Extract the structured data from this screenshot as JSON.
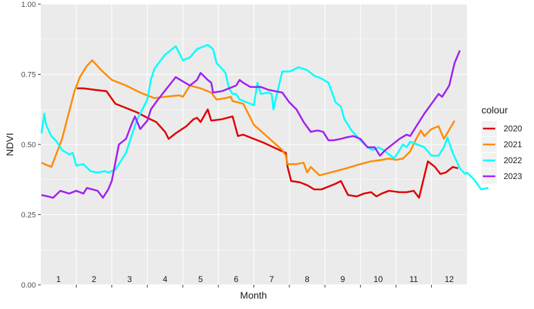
{
  "chart_data": {
    "type": "line",
    "xlabel": "Month",
    "ylabel": "NDVI",
    "xlim": [
      0,
      12
    ],
    "ylim": [
      0,
      1
    ],
    "x_ticks": [
      {
        "pos": 0.5,
        "label": "1"
      },
      {
        "pos": 1.5,
        "label": "2"
      },
      {
        "pos": 2.5,
        "label": "3"
      },
      {
        "pos": 3.5,
        "label": "4"
      },
      {
        "pos": 4.5,
        "label": "5"
      },
      {
        "pos": 5.5,
        "label": "6"
      },
      {
        "pos": 6.5,
        "label": "7"
      },
      {
        "pos": 7.5,
        "label": "8"
      },
      {
        "pos": 8.5,
        "label": "9"
      },
      {
        "pos": 9.5,
        "label": "10"
      },
      {
        "pos": 10.5,
        "label": "11"
      },
      {
        "pos": 11.5,
        "label": "12"
      }
    ],
    "y_ticks": [
      {
        "value": 0.0,
        "label": "0.00"
      },
      {
        "value": 0.25,
        "label": "0.25"
      },
      {
        "value": 0.5,
        "label": "0.50"
      },
      {
        "value": 0.75,
        "label": "0.75"
      },
      {
        "value": 1.0,
        "label": "1.00"
      }
    ],
    "grid": true,
    "legend": {
      "title": "colour",
      "position": "right"
    },
    "series": [
      {
        "name": "2020",
        "color": "#e00000",
        "points": [
          [
            1.02,
            0.7
          ],
          [
            1.2,
            0.7
          ],
          [
            1.5,
            0.695
          ],
          [
            1.85,
            0.69
          ],
          [
            2.1,
            0.645
          ],
          [
            2.4,
            0.63
          ],
          [
            2.7,
            0.615
          ],
          [
            3.0,
            0.595
          ],
          [
            3.25,
            0.58
          ],
          [
            3.5,
            0.545
          ],
          [
            3.6,
            0.52
          ],
          [
            3.8,
            0.54
          ],
          [
            4.1,
            0.565
          ],
          [
            4.3,
            0.59
          ],
          [
            4.4,
            0.595
          ],
          [
            4.5,
            0.58
          ],
          [
            4.7,
            0.625
          ],
          [
            4.8,
            0.585
          ],
          [
            5.1,
            0.59
          ],
          [
            5.4,
            0.6
          ],
          [
            5.55,
            0.53
          ],
          [
            5.7,
            0.535
          ],
          [
            6.0,
            0.52
          ],
          [
            6.3,
            0.505
          ],
          [
            6.55,
            0.49
          ],
          [
            6.9,
            0.47
          ],
          [
            6.95,
            0.42
          ],
          [
            7.05,
            0.37
          ],
          [
            7.3,
            0.365
          ],
          [
            7.5,
            0.355
          ],
          [
            7.7,
            0.34
          ],
          [
            7.9,
            0.34
          ],
          [
            8.1,
            0.35
          ],
          [
            8.3,
            0.36
          ],
          [
            8.45,
            0.37
          ],
          [
            8.55,
            0.345
          ],
          [
            8.65,
            0.32
          ],
          [
            8.9,
            0.315
          ],
          [
            9.1,
            0.325
          ],
          [
            9.3,
            0.33
          ],
          [
            9.45,
            0.315
          ],
          [
            9.6,
            0.325
          ],
          [
            9.8,
            0.335
          ],
          [
            10.1,
            0.33
          ],
          [
            10.3,
            0.33
          ],
          [
            10.5,
            0.335
          ],
          [
            10.65,
            0.31
          ],
          [
            10.9,
            0.44
          ],
          [
            11.1,
            0.42
          ],
          [
            11.25,
            0.395
          ],
          [
            11.4,
            0.4
          ],
          [
            11.6,
            0.42
          ],
          [
            11.75,
            0.415
          ]
        ]
      },
      {
        "name": "2021",
        "color": "#ff8c00",
        "points": [
          [
            0.02,
            0.435
          ],
          [
            0.3,
            0.42
          ],
          [
            0.6,
            0.52
          ],
          [
            0.95,
            0.69
          ],
          [
            1.1,
            0.74
          ],
          [
            1.3,
            0.78
          ],
          [
            1.45,
            0.8
          ],
          [
            1.7,
            0.765
          ],
          [
            2.0,
            0.73
          ],
          [
            2.4,
            0.71
          ],
          [
            2.8,
            0.685
          ],
          [
            3.2,
            0.665
          ],
          [
            3.5,
            0.67
          ],
          [
            3.9,
            0.675
          ],
          [
            4.0,
            0.67
          ],
          [
            4.2,
            0.71
          ],
          [
            4.5,
            0.7
          ],
          [
            4.8,
            0.685
          ],
          [
            4.95,
            0.66
          ],
          [
            5.2,
            0.665
          ],
          [
            5.35,
            0.67
          ],
          [
            5.4,
            0.655
          ],
          [
            5.7,
            0.645
          ],
          [
            6.0,
            0.57
          ],
          [
            6.4,
            0.525
          ],
          [
            6.8,
            0.48
          ],
          [
            6.9,
            0.46
          ],
          [
            6.95,
            0.43
          ],
          [
            7.2,
            0.43
          ],
          [
            7.4,
            0.435
          ],
          [
            7.5,
            0.4
          ],
          [
            7.6,
            0.42
          ],
          [
            7.85,
            0.39
          ],
          [
            8.0,
            0.395
          ],
          [
            8.3,
            0.405
          ],
          [
            8.6,
            0.415
          ],
          [
            9.0,
            0.43
          ],
          [
            9.3,
            0.44
          ],
          [
            9.6,
            0.445
          ],
          [
            9.8,
            0.45
          ],
          [
            10.0,
            0.445
          ],
          [
            10.2,
            0.45
          ],
          [
            10.4,
            0.475
          ],
          [
            10.55,
            0.515
          ],
          [
            10.7,
            0.55
          ],
          [
            10.8,
            0.53
          ],
          [
            11.0,
            0.555
          ],
          [
            11.2,
            0.565
          ],
          [
            11.35,
            0.52
          ],
          [
            11.65,
            0.585
          ]
        ]
      },
      {
        "name": "2022",
        "color": "#00ffff",
        "points": [
          [
            0.02,
            0.54
          ],
          [
            0.1,
            0.61
          ],
          [
            0.15,
            0.57
          ],
          [
            0.3,
            0.53
          ],
          [
            0.45,
            0.51
          ],
          [
            0.6,
            0.48
          ],
          [
            0.8,
            0.465
          ],
          [
            0.9,
            0.47
          ],
          [
            1.0,
            0.425
          ],
          [
            1.2,
            0.43
          ],
          [
            1.4,
            0.405
          ],
          [
            1.6,
            0.4
          ],
          [
            1.8,
            0.405
          ],
          [
            1.9,
            0.4
          ],
          [
            2.1,
            0.41
          ],
          [
            2.4,
            0.47
          ],
          [
            2.7,
            0.585
          ],
          [
            3.0,
            0.66
          ],
          [
            3.1,
            0.73
          ],
          [
            3.2,
            0.77
          ],
          [
            3.5,
            0.82
          ],
          [
            3.8,
            0.85
          ],
          [
            4.0,
            0.8
          ],
          [
            4.2,
            0.81
          ],
          [
            4.4,
            0.84
          ],
          [
            4.7,
            0.855
          ],
          [
            4.85,
            0.84
          ],
          [
            4.95,
            0.79
          ],
          [
            5.1,
            0.77
          ],
          [
            5.2,
            0.755
          ],
          [
            5.3,
            0.7
          ],
          [
            5.4,
            0.68
          ],
          [
            5.5,
            0.68
          ],
          [
            5.6,
            0.66
          ],
          [
            5.8,
            0.65
          ],
          [
            6.0,
            0.64
          ],
          [
            6.1,
            0.72
          ],
          [
            6.2,
            0.68
          ],
          [
            6.4,
            0.685
          ],
          [
            6.5,
            0.68
          ],
          [
            6.55,
            0.625
          ],
          [
            6.65,
            0.68
          ],
          [
            6.8,
            0.76
          ],
          [
            7.0,
            0.76
          ],
          [
            7.1,
            0.765
          ],
          [
            7.25,
            0.775
          ],
          [
            7.5,
            0.765
          ],
          [
            7.7,
            0.745
          ],
          [
            7.9,
            0.735
          ],
          [
            8.1,
            0.72
          ],
          [
            8.3,
            0.65
          ],
          [
            8.45,
            0.635
          ],
          [
            8.55,
            0.59
          ],
          [
            8.75,
            0.55
          ],
          [
            9.0,
            0.515
          ],
          [
            9.2,
            0.49
          ],
          [
            9.35,
            0.48
          ],
          [
            9.5,
            0.49
          ],
          [
            9.65,
            0.48
          ],
          [
            9.8,
            0.465
          ],
          [
            9.95,
            0.45
          ],
          [
            10.1,
            0.48
          ],
          [
            10.2,
            0.5
          ],
          [
            10.3,
            0.49
          ],
          [
            10.4,
            0.51
          ],
          [
            10.6,
            0.5
          ],
          [
            10.8,
            0.49
          ],
          [
            11.0,
            0.46
          ],
          [
            11.2,
            0.46
          ],
          [
            11.35,
            0.49
          ],
          [
            11.45,
            0.525
          ],
          [
            11.6,
            0.47
          ],
          [
            11.8,
            0.415
          ],
          [
            11.95,
            0.395
          ],
          [
            12.0,
            0.4
          ],
          [
            12.2,
            0.375
          ],
          [
            12.4,
            0.34
          ],
          [
            12.6,
            0.345
          ]
        ]
      },
      {
        "name": "2023",
        "color": "#a020f0",
        "points": [
          [
            0.02,
            0.32
          ],
          [
            0.2,
            0.315
          ],
          [
            0.35,
            0.31
          ],
          [
            0.55,
            0.335
          ],
          [
            0.8,
            0.325
          ],
          [
            1.0,
            0.335
          ],
          [
            1.2,
            0.325
          ],
          [
            1.3,
            0.345
          ],
          [
            1.6,
            0.335
          ],
          [
            1.75,
            0.31
          ],
          [
            1.9,
            0.34
          ],
          [
            2.0,
            0.37
          ],
          [
            2.2,
            0.5
          ],
          [
            2.4,
            0.52
          ],
          [
            2.55,
            0.57
          ],
          [
            2.65,
            0.6
          ],
          [
            2.8,
            0.555
          ],
          [
            3.0,
            0.585
          ],
          [
            3.1,
            0.625
          ],
          [
            3.3,
            0.66
          ],
          [
            3.55,
            0.7
          ],
          [
            3.8,
            0.74
          ],
          [
            4.0,
            0.725
          ],
          [
            4.2,
            0.71
          ],
          [
            4.4,
            0.73
          ],
          [
            4.5,
            0.755
          ],
          [
            4.7,
            0.73
          ],
          [
            4.8,
            0.72
          ],
          [
            4.85,
            0.685
          ],
          [
            5.1,
            0.69
          ],
          [
            5.3,
            0.7
          ],
          [
            5.5,
            0.71
          ],
          [
            5.6,
            0.73
          ],
          [
            5.7,
            0.72
          ],
          [
            5.9,
            0.705
          ],
          [
            6.2,
            0.705
          ],
          [
            6.4,
            0.695
          ],
          [
            6.6,
            0.69
          ],
          [
            6.8,
            0.685
          ],
          [
            7.0,
            0.65
          ],
          [
            7.2,
            0.625
          ],
          [
            7.4,
            0.58
          ],
          [
            7.6,
            0.545
          ],
          [
            7.8,
            0.55
          ],
          [
            7.95,
            0.545
          ],
          [
            8.1,
            0.515
          ],
          [
            8.25,
            0.515
          ],
          [
            8.45,
            0.52
          ],
          [
            8.6,
            0.525
          ],
          [
            8.8,
            0.53
          ],
          [
            9.0,
            0.52
          ],
          [
            9.2,
            0.49
          ],
          [
            9.4,
            0.49
          ],
          [
            9.55,
            0.46
          ],
          [
            9.7,
            0.48
          ],
          [
            9.9,
            0.5
          ],
          [
            10.1,
            0.52
          ],
          [
            10.3,
            0.535
          ],
          [
            10.4,
            0.53
          ],
          [
            10.6,
            0.57
          ],
          [
            10.8,
            0.61
          ],
          [
            11.0,
            0.645
          ],
          [
            11.2,
            0.68
          ],
          [
            11.3,
            0.67
          ],
          [
            11.4,
            0.69
          ],
          [
            11.5,
            0.71
          ],
          [
            11.65,
            0.79
          ],
          [
            11.8,
            0.835
          ]
        ]
      }
    ]
  }
}
